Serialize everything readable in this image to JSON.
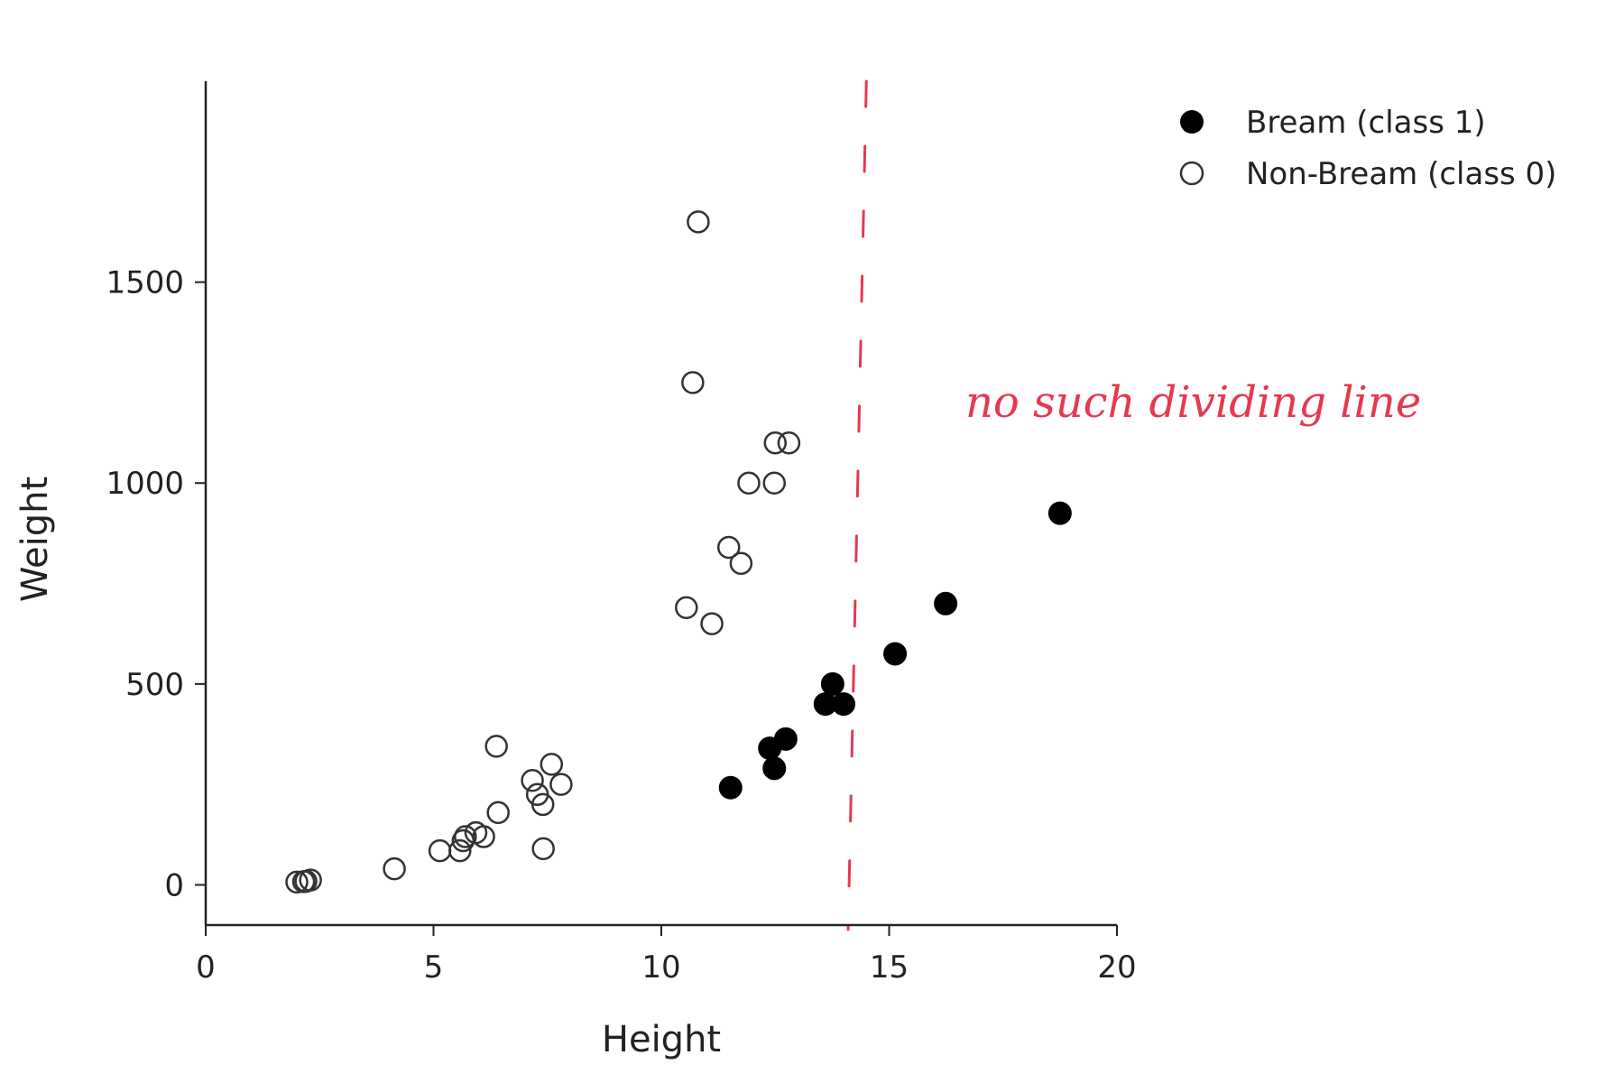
{
  "chart_data": {
    "type": "scatter",
    "title": "",
    "xlabel": "Height",
    "ylabel": "Weight",
    "xlim": [
      0,
      20
    ],
    "ylim": [
      -100,
      2000
    ],
    "xticks": [
      0,
      5,
      10,
      15,
      20
    ],
    "yticks": [
      0,
      500,
      1000,
      1500
    ],
    "grid": false,
    "legend_position": "top-right",
    "series": [
      {
        "name": "Bream (class 1)",
        "marker": "filled-circle",
        "color": "#000000",
        "points": [
          [
            11.52,
            242
          ],
          [
            12.48,
            290
          ],
          [
            12.38,
            340
          ],
          [
            12.73,
            363
          ],
          [
            13.6,
            450
          ],
          [
            14.0,
            450
          ],
          [
            13.76,
            500
          ],
          [
            15.13,
            575
          ],
          [
            16.24,
            700
          ],
          [
            18.75,
            925
          ]
        ]
      },
      {
        "name": "Non-Bream (class 0)",
        "marker": "open-circle",
        "color": "#333333",
        "points": [
          [
            2.0,
            7
          ],
          [
            2.15,
            8
          ],
          [
            2.2,
            9
          ],
          [
            2.3,
            12
          ],
          [
            4.14,
            40
          ],
          [
            5.14,
            85
          ],
          [
            5.58,
            85
          ],
          [
            5.65,
            110
          ],
          [
            5.7,
            120
          ],
          [
            5.93,
            130
          ],
          [
            6.1,
            120
          ],
          [
            6.42,
            180
          ],
          [
            6.38,
            345
          ],
          [
            7.17,
            260
          ],
          [
            7.28,
            225
          ],
          [
            7.4,
            200
          ],
          [
            7.41,
            90
          ],
          [
            7.59,
            300
          ],
          [
            7.8,
            250
          ],
          [
            10.55,
            690
          ],
          [
            11.11,
            650
          ],
          [
            11.48,
            840
          ],
          [
            11.75,
            800
          ],
          [
            11.92,
            1000
          ],
          [
            12.48,
            1000
          ],
          [
            12.5,
            1100
          ],
          [
            12.8,
            1100
          ],
          [
            10.69,
            1250
          ],
          [
            10.81,
            1650
          ]
        ]
      }
    ],
    "annotation": {
      "text": "no such dividing line",
      "line": {
        "style": "dashed",
        "color": "#e53950",
        "x_top": 14.5,
        "x_bottom": 14.1
      }
    }
  }
}
